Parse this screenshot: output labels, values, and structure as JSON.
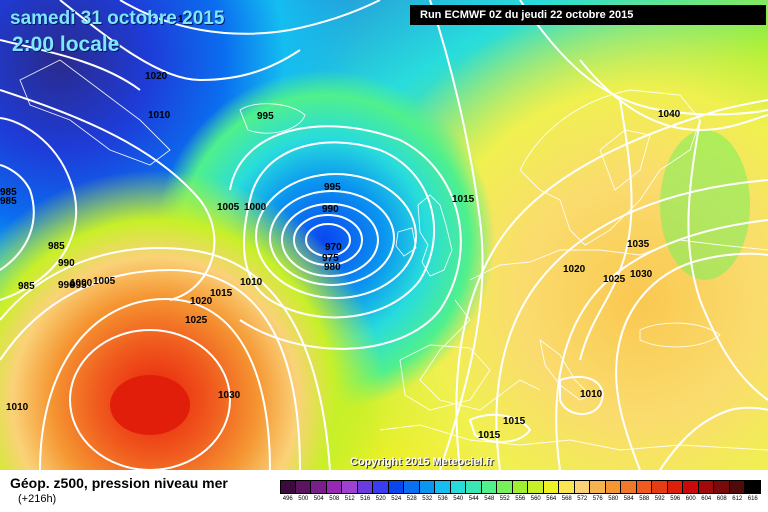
{
  "header": {
    "date": "samedi 31 octobre 2015",
    "time": "2:00 locale",
    "run": "Run ECMWF 0Z du jeudi 22 octobre 2015"
  },
  "copyright": "Copyright 2015 Meteociel.fr",
  "footer": {
    "title": "Géop. z500, pression niveau mer",
    "lead": "(+216h)"
  },
  "legend": {
    "labels": [
      "496",
      "500",
      "504",
      "508",
      "512",
      "516",
      "520",
      "524",
      "528",
      "532",
      "536",
      "540",
      "544",
      "548",
      "552",
      "556",
      "560",
      "564",
      "568",
      "572",
      "576",
      "580",
      "584",
      "588",
      "592",
      "596",
      "600",
      "604",
      "608",
      "612",
      "616"
    ],
    "colors": [
      "#3c0a3c",
      "#5a1460",
      "#7a1e8c",
      "#9628b4",
      "#a040d0",
      "#6a3ce0",
      "#3a3cf0",
      "#0a46f0",
      "#0a6ef0",
      "#0a96f0",
      "#14bef0",
      "#28dcdc",
      "#3ce6b4",
      "#50f08c",
      "#78f05a",
      "#a0f032",
      "#c8f028",
      "#eef028",
      "#fae650",
      "#fad278",
      "#f5b450",
      "#f59632",
      "#f07828",
      "#f05a1e",
      "#e63c14",
      "#dc1e0a",
      "#c80a0a",
      "#a00a0a",
      "#780a0a",
      "#500a0a",
      "#000000"
    ]
  },
  "isobars": {
    "labels": [
      {
        "text": "1020"
      },
      {
        "text": "1010"
      },
      {
        "text": "995"
      },
      {
        "text": "985"
      },
      {
        "text": "985"
      },
      {
        "text": "1005"
      },
      {
        "text": "1000"
      },
      {
        "text": "995"
      },
      {
        "text": "990"
      },
      {
        "text": "970"
      },
      {
        "text": "975"
      },
      {
        "text": "980"
      },
      {
        "text": "985"
      },
      {
        "text": "985"
      },
      {
        "text": "990"
      },
      {
        "text": "990"
      },
      {
        "text": "995"
      },
      {
        "text": "1000"
      },
      {
        "text": "1005"
      },
      {
        "text": "1010"
      },
      {
        "text": "1015"
      },
      {
        "text": "1020"
      },
      {
        "text": "1025"
      },
      {
        "text": "1030"
      },
      {
        "text": "1010"
      },
      {
        "text": "1015"
      },
      {
        "text": "1040"
      },
      {
        "text": "1035"
      },
      {
        "text": "1020"
      },
      {
        "text": "1025"
      },
      {
        "text": "1030"
      },
      {
        "text": "1010"
      },
      {
        "text": "1015"
      },
      {
        "text": "1015"
      },
      {
        "text": "1"
      }
    ]
  }
}
